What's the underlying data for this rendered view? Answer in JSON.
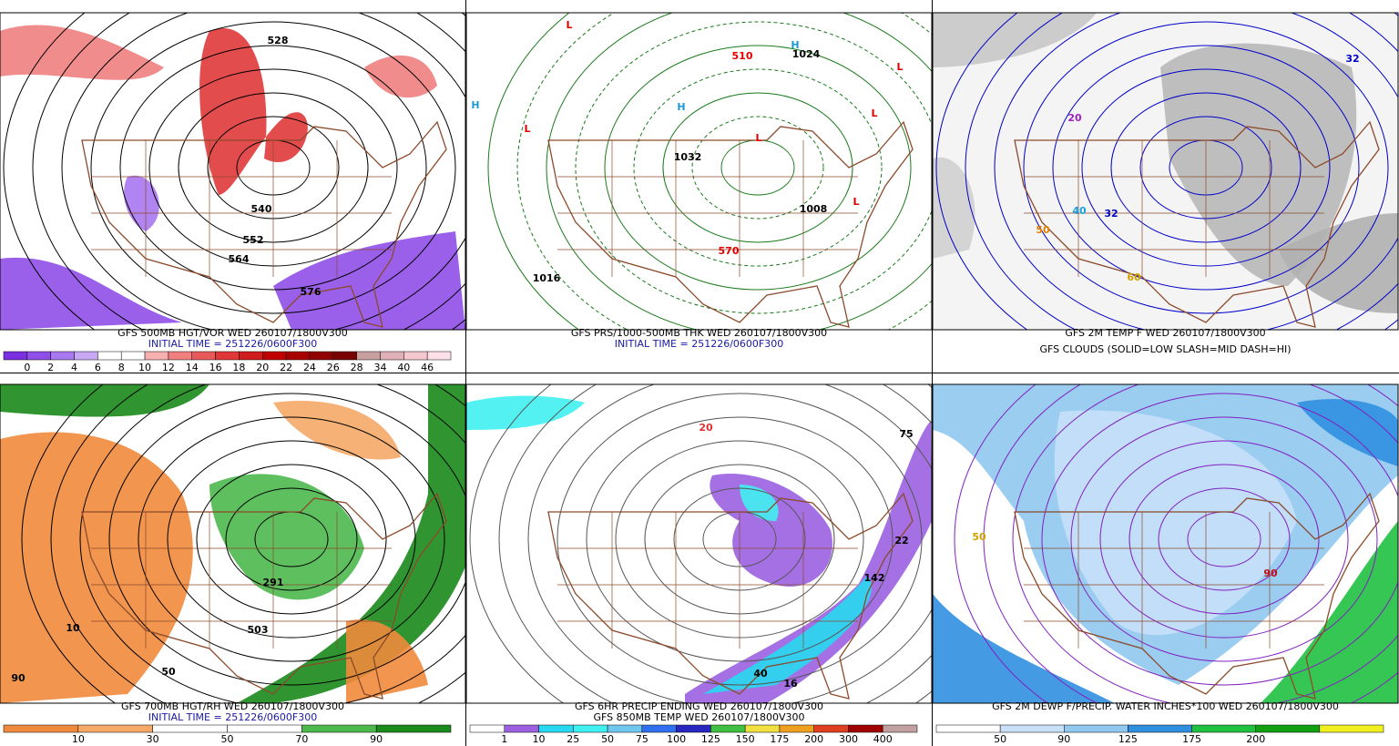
{
  "panels": [
    {
      "captions": [
        {
          "text": "GFS 500MB HGT/VOR WED 260107/1800V300",
          "color": "#000000"
        },
        {
          "text": "INITIAL TIME = 251226/0600F300",
          "color": "#1a1aa8"
        }
      ],
      "colorbar": {
        "labels": [
          0,
          2,
          4,
          6,
          8,
          10,
          12,
          14,
          16,
          18,
          20,
          22,
          24,
          26,
          28,
          34,
          40,
          46
        ],
        "colors": [
          "#7a2fe0",
          "#8f4fe8",
          "#a878f0",
          "#c8a8f5",
          "#ffffff",
          "#ffffff",
          "#f7b0b0",
          "#f08080",
          "#e85a5a",
          "#e03838",
          "#d01c1c",
          "#c00000",
          "#a80000",
          "#900000",
          "#780000",
          "#c8a0a0",
          "#e0b0b8",
          "#f5c8d0",
          "#ffe0e8"
        ]
      },
      "map_labels": [
        {
          "text": "528",
          "color": "#000000"
        },
        {
          "text": "540",
          "color": "#000000"
        },
        {
          "text": "552",
          "color": "#000000"
        },
        {
          "text": "564",
          "color": "#000000"
        },
        {
          "text": "576",
          "color": "#000000"
        }
      ]
    },
    {
      "captions": [
        {
          "text": "GFS PRS/1000-500MB THK WED 260107/1800V300",
          "color": "#000000"
        },
        {
          "text": "INITIAL TIME = 251226/0600F300",
          "color": "#1a1aa8"
        }
      ],
      "map_labels": [
        {
          "text": "L",
          "color": "#e00000"
        },
        {
          "text": "L",
          "color": "#e00000"
        },
        {
          "text": "L",
          "color": "#e00000"
        },
        {
          "text": "L",
          "color": "#e00000"
        },
        {
          "text": "L",
          "color": "#e00000"
        },
        {
          "text": "L",
          "color": "#e00000"
        },
        {
          "text": "H",
          "color": "#1a9ad6"
        },
        {
          "text": "H",
          "color": "#1a9ad6"
        },
        {
          "text": "H",
          "color": "#1a9ad6"
        },
        {
          "text": "1016",
          "color": "#000000"
        },
        {
          "text": "1032",
          "color": "#000000"
        },
        {
          "text": "1008",
          "color": "#000000"
        },
        {
          "text": "1024",
          "color": "#000000"
        },
        {
          "text": "510",
          "color": "#e00000"
        },
        {
          "text": "570",
          "color": "#e00000"
        }
      ]
    },
    {
      "captions": [
        {
          "text": "GFS 2M TEMP F WED 260107/1800V300",
          "color": "#000000"
        },
        {
          "text": "GFS CLOUDS (SOLID=LOW SLASH=MID DASH=HI)",
          "color": "#000000"
        }
      ],
      "map_labels": [
        {
          "text": "32",
          "color": "#0000c8"
        },
        {
          "text": "40",
          "color": "#1aa0e0"
        },
        {
          "text": "50",
          "color": "#e08000"
        },
        {
          "text": "20",
          "color": "#a020c0"
        },
        {
          "text": "32",
          "color": "#0000c8"
        },
        {
          "text": "60",
          "color": "#d0a000"
        }
      ]
    },
    {
      "captions": [
        {
          "text": "GFS 700MB HGT/RH WED 260107/1800V300",
          "color": "#000000"
        },
        {
          "text": "INITIAL TIME = 251226/0600F300",
          "color": "#1a1aa8"
        }
      ],
      "colorbar": {
        "labels": [
          10,
          30,
          50,
          70,
          90
        ],
        "colors": [
          "#f08a3c",
          "#f5a868",
          "#ffffff",
          "#ffffff",
          "#4cb84c",
          "#1a8a1a"
        ]
      },
      "map_labels": [
        {
          "text": "10",
          "color": "#000000"
        },
        {
          "text": "90",
          "color": "#000000"
        },
        {
          "text": "50",
          "color": "#000000"
        },
        {
          "text": "503",
          "color": "#000000"
        },
        {
          "text": "291",
          "color": "#000000"
        }
      ]
    },
    {
      "captions": [
        {
          "text": "GFS 6HR PRECIP ENDING WED 260107/1800V300",
          "color": "#000000"
        },
        {
          "text": "GFS 850MB TEMP WED 260107/1800V300",
          "color": "#000000"
        }
      ],
      "colorbar": {
        "labels": [
          1,
          10,
          25,
          50,
          75,
          100,
          125,
          150,
          175,
          200,
          300,
          400
        ],
        "colors": [
          "#ffffff",
          "#9a60e0",
          "#28d8f0",
          "#40f0f0",
          "#70c8f0",
          "#3070f0",
          "#2828c0",
          "#40c040",
          "#f0e040",
          "#f0a020",
          "#e04020",
          "#a00000",
          "#c0a0a0"
        ]
      },
      "map_labels": [
        {
          "text": "20",
          "color": "#e03030"
        },
        {
          "text": "40",
          "color": "#000000"
        },
        {
          "text": "142",
          "color": "#000000"
        },
        {
          "text": "75",
          "color": "#000000"
        },
        {
          "text": "22",
          "color": "#000000"
        },
        {
          "text": "16",
          "color": "#000000"
        }
      ]
    },
    {
      "captions": [
        {
          "text": "GFS 2M DEWP F/PRECIP. WATER INCHES*100 WED 260107/1800V300",
          "color": "#000000"
        }
      ],
      "colorbar": {
        "labels": [
          50,
          90,
          125,
          175,
          200
        ],
        "colors": [
          "#ffffff",
          "#c8e0f8",
          "#90c8f0",
          "#3090e0",
          "#20c040",
          "#10a010",
          "#f0f020"
        ]
      },
      "map_labels": [
        {
          "text": "90",
          "color": "#c01010"
        },
        {
          "text": "50",
          "color": "#d0a000"
        }
      ]
    }
  ]
}
